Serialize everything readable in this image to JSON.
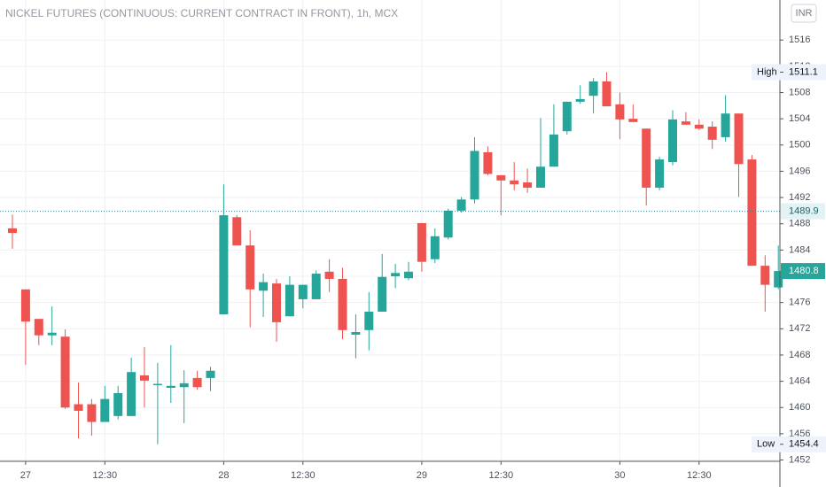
{
  "chart_data": {
    "type": "candlestick",
    "title": "NICKEL FUTURES (CONTINUOUS: CURRENT CONTRACT IN FRONT), 1h, MCX",
    "currency": "INR",
    "categories": [
      null,
      "27",
      null,
      null,
      null,
      null,
      null,
      "12:30",
      null,
      null,
      null,
      null,
      null,
      null,
      null,
      null,
      "28",
      null,
      null,
      null,
      null,
      null,
      "12:30",
      null,
      null,
      null,
      null,
      null,
      null,
      null,
      null,
      "29",
      null,
      null,
      null,
      null,
      null,
      "12:30",
      null,
      null,
      null,
      null,
      null,
      null,
      null,
      null,
      "30",
      null,
      null,
      null,
      null,
      null,
      "12:30",
      null,
      null,
      null,
      null,
      null,
      null
    ],
    "open": [
      1487.3,
      1478.0,
      1473.5,
      1471.0,
      1470.8,
      1460.5,
      1460.5,
      1457.8,
      1458.7,
      1458.7,
      1464.9,
      1463.6,
      1463.0,
      1463.1,
      1464.5,
      1464.5,
      1474.2,
      1489.0,
      1484.7,
      1477.8,
      1478.9,
      1473.9,
      1476.5,
      1476.5,
      1480.7,
      1479.6,
      1471.1,
      1471.8,
      1474.6,
      1480.0,
      1479.7,
      1488.1,
      1482.6,
      1485.9,
      1490.0,
      1491.7,
      1498.9,
      1495.4,
      1494.6,
      1494.3,
      1493.5,
      1496.7,
      1502.1,
      1506.6,
      1507.5,
      1509.7,
      1506.2,
      1504.0,
      1502.5,
      1493.5,
      1497.4,
      1503.6,
      1503.1,
      1502.8,
      1501.2,
      1504.8,
      1497.8,
      1481.6,
      1478.3
    ],
    "high": [
      1489.4,
      1478.0,
      1473.5,
      1475.4,
      1471.9,
      1463.8,
      1461.3,
      1463.3,
      1463.3,
      1467.6,
      1469.2,
      1466.8,
      1469.5,
      1465.7,
      1465.6,
      1466.2,
      1494.0,
      1489.3,
      1487.0,
      1480.4,
      1479.6,
      1480.0,
      1478.7,
      1480.9,
      1482.6,
      1481.3,
      1474.2,
      1477.6,
      1483.4,
      1481.9,
      1482.2,
      1488.1,
      1487.3,
      1490.3,
      1492.1,
      1501.2,
      1499.8,
      1495.4,
      1497.4,
      1496.4,
      1504.1,
      1506.2,
      1506.6,
      1509.1,
      1510.2,
      1511.1,
      1508.0,
      1506.2,
      1502.5,
      1498.2,
      1505.3,
      1505.0,
      1503.9,
      1503.6,
      1507.6,
      1504.8,
      1498.5,
      1483.2,
      1484.7
    ],
    "low": [
      1484.2,
      1466.5,
      1469.5,
      1469.5,
      1459.8,
      1455.3,
      1455.7,
      1457.8,
      1458.2,
      1458.7,
      1460.0,
      1454.4,
      1460.7,
      1457.6,
      1462.7,
      1462.5,
      1474.2,
      1484.7,
      1472.2,
      1473.8,
      1470.0,
      1473.9,
      1475.1,
      1476.5,
      1477.6,
      1470.4,
      1467.5,
      1468.7,
      1474.6,
      1478.2,
      1479.4,
      1480.7,
      1482.0,
      1485.6,
      1489.7,
      1491.1,
      1495.4,
      1489.3,
      1493.1,
      1492.7,
      1493.5,
      1496.7,
      1501.6,
      1506.3,
      1504.8,
      1505.9,
      1500.9,
      1503.5,
      1490.8,
      1493.1,
      1496.9,
      1503.1,
      1502.3,
      1499.4,
      1500.5,
      1492.1,
      1481.6,
      1474.6,
      1478.0
    ],
    "close": [
      1486.6,
      1473.1,
      1471.0,
      1471.4,
      1460.0,
      1459.5,
      1457.8,
      1461.3,
      1462.2,
      1465.4,
      1464.1,
      1463.6,
      1463.3,
      1463.7,
      1463.1,
      1465.6,
      1489.3,
      1484.7,
      1478.0,
      1479.1,
      1473.0,
      1478.7,
      1478.7,
      1480.4,
      1479.6,
      1471.8,
      1471.5,
      1474.6,
      1479.9,
      1480.5,
      1480.7,
      1482.2,
      1486.1,
      1490.0,
      1491.7,
      1499.1,
      1495.6,
      1494.6,
      1494.0,
      1493.5,
      1496.7,
      1501.6,
      1506.6,
      1507.0,
      1509.7,
      1505.9,
      1503.9,
      1503.5,
      1493.5,
      1497.8,
      1503.9,
      1503.1,
      1502.5,
      1500.8,
      1504.8,
      1497.1,
      1481.6,
      1478.7,
      1480.8
    ],
    "up_color": "#26a69a",
    "down_color": "#ef5350",
    "ylim": [
      1451.8,
      1522.1
    ],
    "yticks": [
      1452,
      1456,
      1460,
      1464,
      1468,
      1472,
      1476,
      1480,
      1484,
      1488,
      1492,
      1496,
      1500,
      1504,
      1508,
      1512,
      1516
    ],
    "grid": true,
    "high_label": "High",
    "low_label": "Low",
    "reference_price": 1489.9
  }
}
